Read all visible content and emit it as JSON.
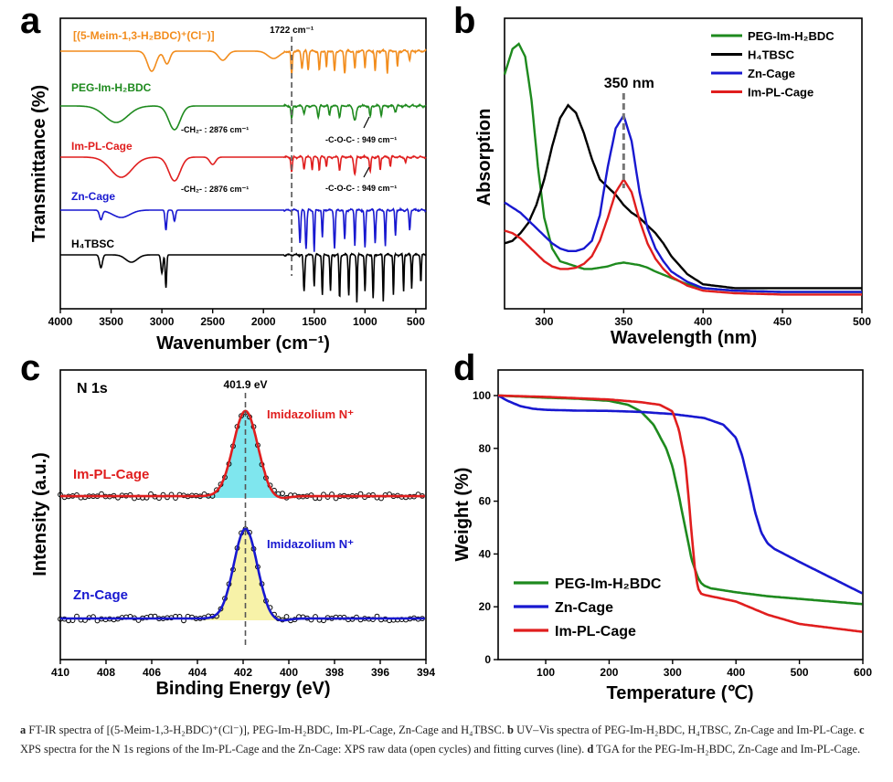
{
  "caption": {
    "a_letter": "a",
    "a_text": " FT-IR spectra of [(5-Meim-1,3-H₂BDC)⁺(Cl⁻)], PEG-Im-H₂BDC, Im-PL-Cage, Zn-Cage and H₄TBSC. ",
    "b_letter": "b",
    "b_text": " UV–Vis spectra of PEG-Im-H₂BDC, H₄TBSC, Zn-Cage and Im-PL-Cage. ",
    "c_letter": "c",
    "c_text": " XPS spectra for the N 1s regions of the Im-PL-Cage and the Zn-Cage: XPS raw data (open cycles) and fitting curves (line). ",
    "d_letter": "d",
    "d_text": " TGA for the PEG-Im-H₂BDC, Zn-Cage and Im-PL-Cage."
  },
  "colors": {
    "orange": "#f28c1c",
    "green": "#1e8a1e",
    "red": "#e01e1e",
    "blue": "#1818d0",
    "black": "#000000",
    "cyan_fill": "#7fe6ee",
    "yellow_fill": "#f7f2a8"
  },
  "chart_data": [
    {
      "panel": "a",
      "type": "line",
      "xlabel": "Wavenumber (cm⁻¹)",
      "ylabel": "Transmittance (%)",
      "xlim": [
        4000,
        400
      ],
      "x_reversed": true,
      "x_ticks": [
        4000,
        3500,
        3000,
        2500,
        2000,
        1500,
        1000,
        500
      ],
      "reference_line": {
        "x": 1722,
        "label": "1722 cm⁻¹"
      },
      "series": [
        {
          "name": "[(5-Meim-1,3-H₂BDC)⁺(Cl⁻)]",
          "color": "orange"
        },
        {
          "name": "PEG-Im-H₂BDC",
          "color": "green"
        },
        {
          "name": "Im-PL-Cage",
          "color": "red"
        },
        {
          "name": "Zn-Cage",
          "color": "blue"
        },
        {
          "name": "H₄TBSC",
          "color": "black"
        }
      ],
      "annotations": [
        {
          "text": "-CH₂- : 2876 cm⁻¹",
          "series": "PEG-Im-H₂BDC"
        },
        {
          "text": "-C-O-C- : 949 cm⁻¹",
          "series": "PEG-Im-H₂BDC"
        },
        {
          "text": "-CH₂- : 2876 cm⁻¹",
          "series": "Im-PL-Cage"
        },
        {
          "text": "-C-O-C- : 949 cm⁻¹",
          "series": "Im-PL-Cage"
        }
      ]
    },
    {
      "panel": "b",
      "type": "line",
      "xlabel": "Wavelength (nm)",
      "ylabel": "Absorption",
      "xlim": [
        275,
        500
      ],
      "x_ticks": [
        300,
        350,
        400,
        450,
        500
      ],
      "ylim": [
        0,
        1
      ],
      "reference_line": {
        "x": 350,
        "label": "350 nm"
      },
      "legend": "top-right",
      "series": [
        {
          "name": "PEG-Im-H₂BDC",
          "color": "green",
          "x": [
            275,
            280,
            284,
            288,
            292,
            296,
            300,
            305,
            310,
            315,
            320,
            325,
            330,
            335,
            340,
            345,
            350,
            355,
            360,
            365,
            370,
            380,
            390,
            400,
            420,
            450,
            500
          ],
          "y": [
            0.88,
            0.98,
            1.0,
            0.95,
            0.78,
            0.52,
            0.32,
            0.2,
            0.15,
            0.14,
            0.13,
            0.12,
            0.12,
            0.125,
            0.13,
            0.14,
            0.145,
            0.14,
            0.135,
            0.125,
            0.11,
            0.085,
            0.06,
            0.045,
            0.035,
            0.03,
            0.03
          ]
        },
        {
          "name": "H₄TBSC",
          "color": "black",
          "x": [
            275,
            280,
            285,
            290,
            295,
            300,
            305,
            310,
            315,
            320,
            325,
            330,
            335,
            340,
            345,
            350,
            355,
            360,
            365,
            370,
            375,
            380,
            390,
            400,
            420,
            450,
            500
          ],
          "y": [
            0.22,
            0.23,
            0.26,
            0.3,
            0.37,
            0.47,
            0.6,
            0.71,
            0.76,
            0.73,
            0.65,
            0.55,
            0.47,
            0.44,
            0.41,
            0.37,
            0.34,
            0.32,
            0.29,
            0.26,
            0.22,
            0.17,
            0.1,
            0.06,
            0.045,
            0.045,
            0.045
          ]
        },
        {
          "name": "Zn-Cage",
          "color": "blue",
          "x": [
            275,
            280,
            285,
            290,
            295,
            300,
            305,
            310,
            315,
            320,
            325,
            330,
            335,
            340,
            345,
            350,
            355,
            360,
            365,
            370,
            375,
            380,
            390,
            400,
            420,
            450,
            500
          ],
          "y": [
            0.38,
            0.36,
            0.34,
            0.31,
            0.28,
            0.25,
            0.22,
            0.2,
            0.19,
            0.19,
            0.2,
            0.23,
            0.33,
            0.52,
            0.67,
            0.72,
            0.62,
            0.42,
            0.28,
            0.2,
            0.15,
            0.11,
            0.07,
            0.045,
            0.035,
            0.03,
            0.03
          ]
        },
        {
          "name": "Im-PL-Cage",
          "color": "red",
          "x": [
            275,
            280,
            285,
            290,
            295,
            300,
            305,
            310,
            315,
            320,
            325,
            330,
            335,
            340,
            345,
            350,
            355,
            360,
            365,
            370,
            375,
            380,
            390,
            400,
            420,
            450,
            500
          ],
          "y": [
            0.27,
            0.26,
            0.24,
            0.21,
            0.18,
            0.15,
            0.13,
            0.12,
            0.12,
            0.125,
            0.14,
            0.17,
            0.23,
            0.32,
            0.42,
            0.47,
            0.42,
            0.31,
            0.22,
            0.16,
            0.12,
            0.09,
            0.055,
            0.035,
            0.025,
            0.02,
            0.02
          ]
        }
      ]
    },
    {
      "panel": "c",
      "type": "scatter",
      "title": "N 1s",
      "xlabel": "Binding Energy (eV)",
      "ylabel": "Intensity (a.u.)",
      "xlim": [
        410,
        394
      ],
      "x_reversed": true,
      "x_ticks": [
        410,
        408,
        406,
        404,
        402,
        400,
        398,
        396,
        394
      ],
      "reference_line": {
        "x": 401.9,
        "label": "401.9 eV"
      },
      "series": [
        {
          "name": "Im-PL-Cage",
          "color": "red",
          "fill": "cyan_fill",
          "peak_label": "Imidazolium N⁺",
          "peak_center": 401.9,
          "peak_height": 0.97,
          "peak_width": 0.75,
          "baseline": 0.02
        },
        {
          "name": "Zn-Cage",
          "color": "blue",
          "fill": "yellow_fill",
          "peak_label": "Imidazolium N⁺",
          "peak_center": 401.9,
          "peak_height": 0.98,
          "peak_width": 0.72,
          "baseline": 0.02
        }
      ]
    },
    {
      "panel": "d",
      "type": "line",
      "xlabel": "Temperature (℃)",
      "ylabel": "Weight (%)",
      "xlim": [
        25,
        600
      ],
      "ylim": [
        0,
        100
      ],
      "x_ticks": [
        100,
        200,
        300,
        400,
        500,
        600
      ],
      "y_ticks": [
        0,
        20,
        40,
        60,
        80,
        100
      ],
      "legend": "bottom-left",
      "series": [
        {
          "name": "PEG-Im-H₂BDC",
          "color": "green",
          "x": [
            25,
            100,
            150,
            200,
            230,
            250,
            270,
            290,
            300,
            310,
            320,
            330,
            340,
            345,
            350,
            360,
            400,
            450,
            500,
            550,
            600
          ],
          "y": [
            100,
            99.2,
            98.8,
            98,
            96.5,
            94,
            89,
            80,
            73,
            62,
            50,
            38,
            31,
            29,
            28,
            27,
            25.5,
            24,
            23,
            22,
            21
          ]
        },
        {
          "name": "Zn-Cage",
          "color": "blue",
          "x": [
            25,
            40,
            60,
            80,
            100,
            150,
            200,
            250,
            300,
            350,
            380,
            400,
            410,
            420,
            430,
            440,
            450,
            460,
            500,
            550,
            600
          ],
          "y": [
            100,
            98,
            96,
            95,
            94.6,
            94.3,
            94.2,
            93.8,
            93,
            91.5,
            89,
            84,
            77,
            67,
            56,
            48,
            44,
            42,
            37,
            31,
            25
          ]
        },
        {
          "name": "Im-PL-Cage",
          "color": "red",
          "x": [
            25,
            100,
            150,
            200,
            250,
            280,
            300,
            310,
            320,
            325,
            330,
            335,
            340,
            345,
            350,
            400,
            450,
            500,
            550,
            600
          ],
          "y": [
            100,
            99.5,
            99,
            98.5,
            97.5,
            96.5,
            94,
            87,
            75,
            62,
            48,
            35,
            27,
            25,
            24.5,
            22,
            17,
            13.5,
            12,
            10.5
          ]
        }
      ]
    }
  ]
}
